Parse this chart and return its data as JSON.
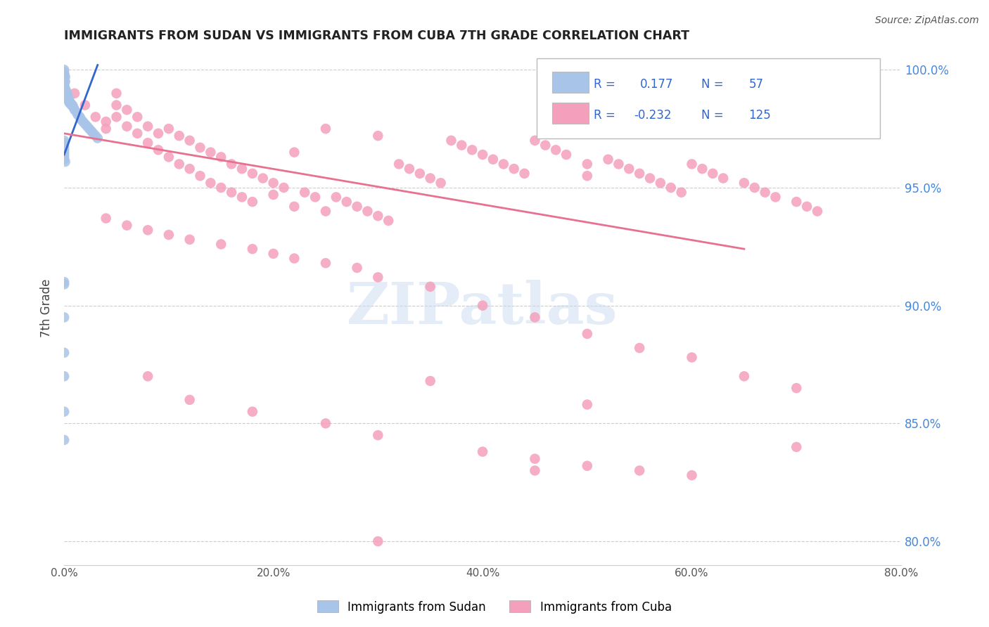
{
  "title": "IMMIGRANTS FROM SUDAN VS IMMIGRANTS FROM CUBA 7TH GRADE CORRELATION CHART",
  "source": "Source: ZipAtlas.com",
  "ylabel": "7th Grade",
  "x_min": 0.0,
  "x_max": 0.8,
  "y_min": 0.79,
  "y_max": 1.008,
  "watermark_text": "ZIPatlas",
  "sudan_R": 0.177,
  "sudan_N": 57,
  "cuba_R": -0.232,
  "cuba_N": 125,
  "sudan_color": "#a8c4e8",
  "cuba_color": "#f4a0bc",
  "sudan_line_color": "#3366cc",
  "cuba_line_color": "#e87090",
  "grid_color": "#cccccc",
  "background_color": "#ffffff",
  "title_color": "#222222",
  "right_axis_color": "#4488dd",
  "legend_text_color": "#3366cc",
  "y_ticks": [
    0.8,
    0.85,
    0.9,
    0.95,
    1.0
  ],
  "y_tick_labels": [
    "80.0%",
    "85.0%",
    "90.0%",
    "95.0%",
    "100.0%"
  ],
  "x_ticks": [
    0.0,
    0.2,
    0.4,
    0.6,
    0.8
  ],
  "x_tick_labels": [
    "0.0%",
    "20.0%",
    "40.0%",
    "60.0%",
    "80.0%"
  ],
  "cuba_trend_x": [
    0.0,
    0.65
  ],
  "cuba_trend_y": [
    0.973,
    0.924
  ],
  "sudan_trend_x": [
    0.0,
    0.032
  ],
  "sudan_trend_y": [
    0.964,
    1.002
  ],
  "sudan_points_x": [
    0.0,
    0.0,
    0.0,
    0.0,
    0.001,
    0.0,
    0.0,
    0.001,
    0.0,
    0.0,
    0.0,
    0.001,
    0.002,
    0.001,
    0.003,
    0.002,
    0.003,
    0.002,
    0.004,
    0.003,
    0.005,
    0.004,
    0.006,
    0.005,
    0.007,
    0.008,
    0.009,
    0.01,
    0.012,
    0.013,
    0.015,
    0.016,
    0.018,
    0.02,
    0.022,
    0.024,
    0.026,
    0.028,
    0.03,
    0.032,
    0.0,
    0.0,
    0.0,
    0.0,
    0.0,
    0.0,
    0.0,
    0.0,
    0.0,
    0.001,
    0.0,
    0.0,
    0.0,
    0.0,
    0.0,
    0.0,
    0.0
  ],
  "sudan_points_y": [
    1.0,
    0.999,
    0.998,
    0.997,
    0.997,
    0.996,
    0.995,
    0.995,
    0.994,
    0.993,
    0.993,
    0.992,
    0.991,
    0.991,
    0.99,
    0.99,
    0.989,
    0.989,
    0.988,
    0.988,
    0.987,
    0.987,
    0.986,
    0.986,
    0.985,
    0.985,
    0.984,
    0.983,
    0.982,
    0.981,
    0.98,
    0.979,
    0.978,
    0.977,
    0.976,
    0.975,
    0.974,
    0.973,
    0.972,
    0.971,
    0.97,
    0.969,
    0.968,
    0.967,
    0.966,
    0.965,
    0.964,
    0.963,
    0.962,
    0.961,
    0.91,
    0.909,
    0.895,
    0.88,
    0.87,
    0.855,
    0.843
  ],
  "cuba_points_x": [
    0.0,
    0.01,
    0.02,
    0.03,
    0.04,
    0.04,
    0.05,
    0.05,
    0.05,
    0.06,
    0.06,
    0.07,
    0.07,
    0.08,
    0.08,
    0.09,
    0.09,
    0.1,
    0.1,
    0.11,
    0.11,
    0.12,
    0.12,
    0.13,
    0.13,
    0.14,
    0.14,
    0.15,
    0.15,
    0.16,
    0.16,
    0.17,
    0.17,
    0.18,
    0.18,
    0.19,
    0.2,
    0.2,
    0.21,
    0.22,
    0.22,
    0.23,
    0.24,
    0.25,
    0.25,
    0.26,
    0.27,
    0.28,
    0.29,
    0.3,
    0.3,
    0.31,
    0.32,
    0.33,
    0.34,
    0.35,
    0.36,
    0.37,
    0.38,
    0.39,
    0.4,
    0.41,
    0.42,
    0.43,
    0.44,
    0.45,
    0.46,
    0.47,
    0.48,
    0.5,
    0.5,
    0.52,
    0.53,
    0.54,
    0.55,
    0.56,
    0.57,
    0.58,
    0.59,
    0.6,
    0.61,
    0.62,
    0.63,
    0.65,
    0.66,
    0.67,
    0.68,
    0.7,
    0.71,
    0.72,
    0.04,
    0.06,
    0.08,
    0.1,
    0.12,
    0.15,
    0.18,
    0.2,
    0.22,
    0.25,
    0.28,
    0.3,
    0.35,
    0.4,
    0.45,
    0.5,
    0.55,
    0.6,
    0.65,
    0.7,
    0.08,
    0.12,
    0.18,
    0.25,
    0.3,
    0.4,
    0.45,
    0.5,
    0.55,
    0.6,
    0.3,
    0.45,
    0.7,
    0.5,
    0.35
  ],
  "cuba_points_y": [
    0.998,
    0.99,
    0.985,
    0.98,
    0.978,
    0.975,
    0.99,
    0.985,
    0.98,
    0.983,
    0.976,
    0.98,
    0.973,
    0.976,
    0.969,
    0.973,
    0.966,
    0.975,
    0.963,
    0.972,
    0.96,
    0.97,
    0.958,
    0.967,
    0.955,
    0.965,
    0.952,
    0.963,
    0.95,
    0.96,
    0.948,
    0.958,
    0.946,
    0.956,
    0.944,
    0.954,
    0.952,
    0.947,
    0.95,
    0.965,
    0.942,
    0.948,
    0.946,
    0.975,
    0.94,
    0.946,
    0.944,
    0.942,
    0.94,
    0.972,
    0.938,
    0.936,
    0.96,
    0.958,
    0.956,
    0.954,
    0.952,
    0.97,
    0.968,
    0.966,
    0.964,
    0.962,
    0.96,
    0.958,
    0.956,
    0.97,
    0.968,
    0.966,
    0.964,
    0.96,
    0.955,
    0.962,
    0.96,
    0.958,
    0.956,
    0.954,
    0.952,
    0.95,
    0.948,
    0.96,
    0.958,
    0.956,
    0.954,
    0.952,
    0.95,
    0.948,
    0.946,
    0.944,
    0.942,
    0.94,
    0.937,
    0.934,
    0.932,
    0.93,
    0.928,
    0.926,
    0.924,
    0.922,
    0.92,
    0.918,
    0.916,
    0.912,
    0.908,
    0.9,
    0.895,
    0.888,
    0.882,
    0.878,
    0.87,
    0.865,
    0.87,
    0.86,
    0.855,
    0.85,
    0.845,
    0.838,
    0.835,
    0.832,
    0.83,
    0.828,
    0.8,
    0.83,
    0.84,
    0.858,
    0.868
  ]
}
